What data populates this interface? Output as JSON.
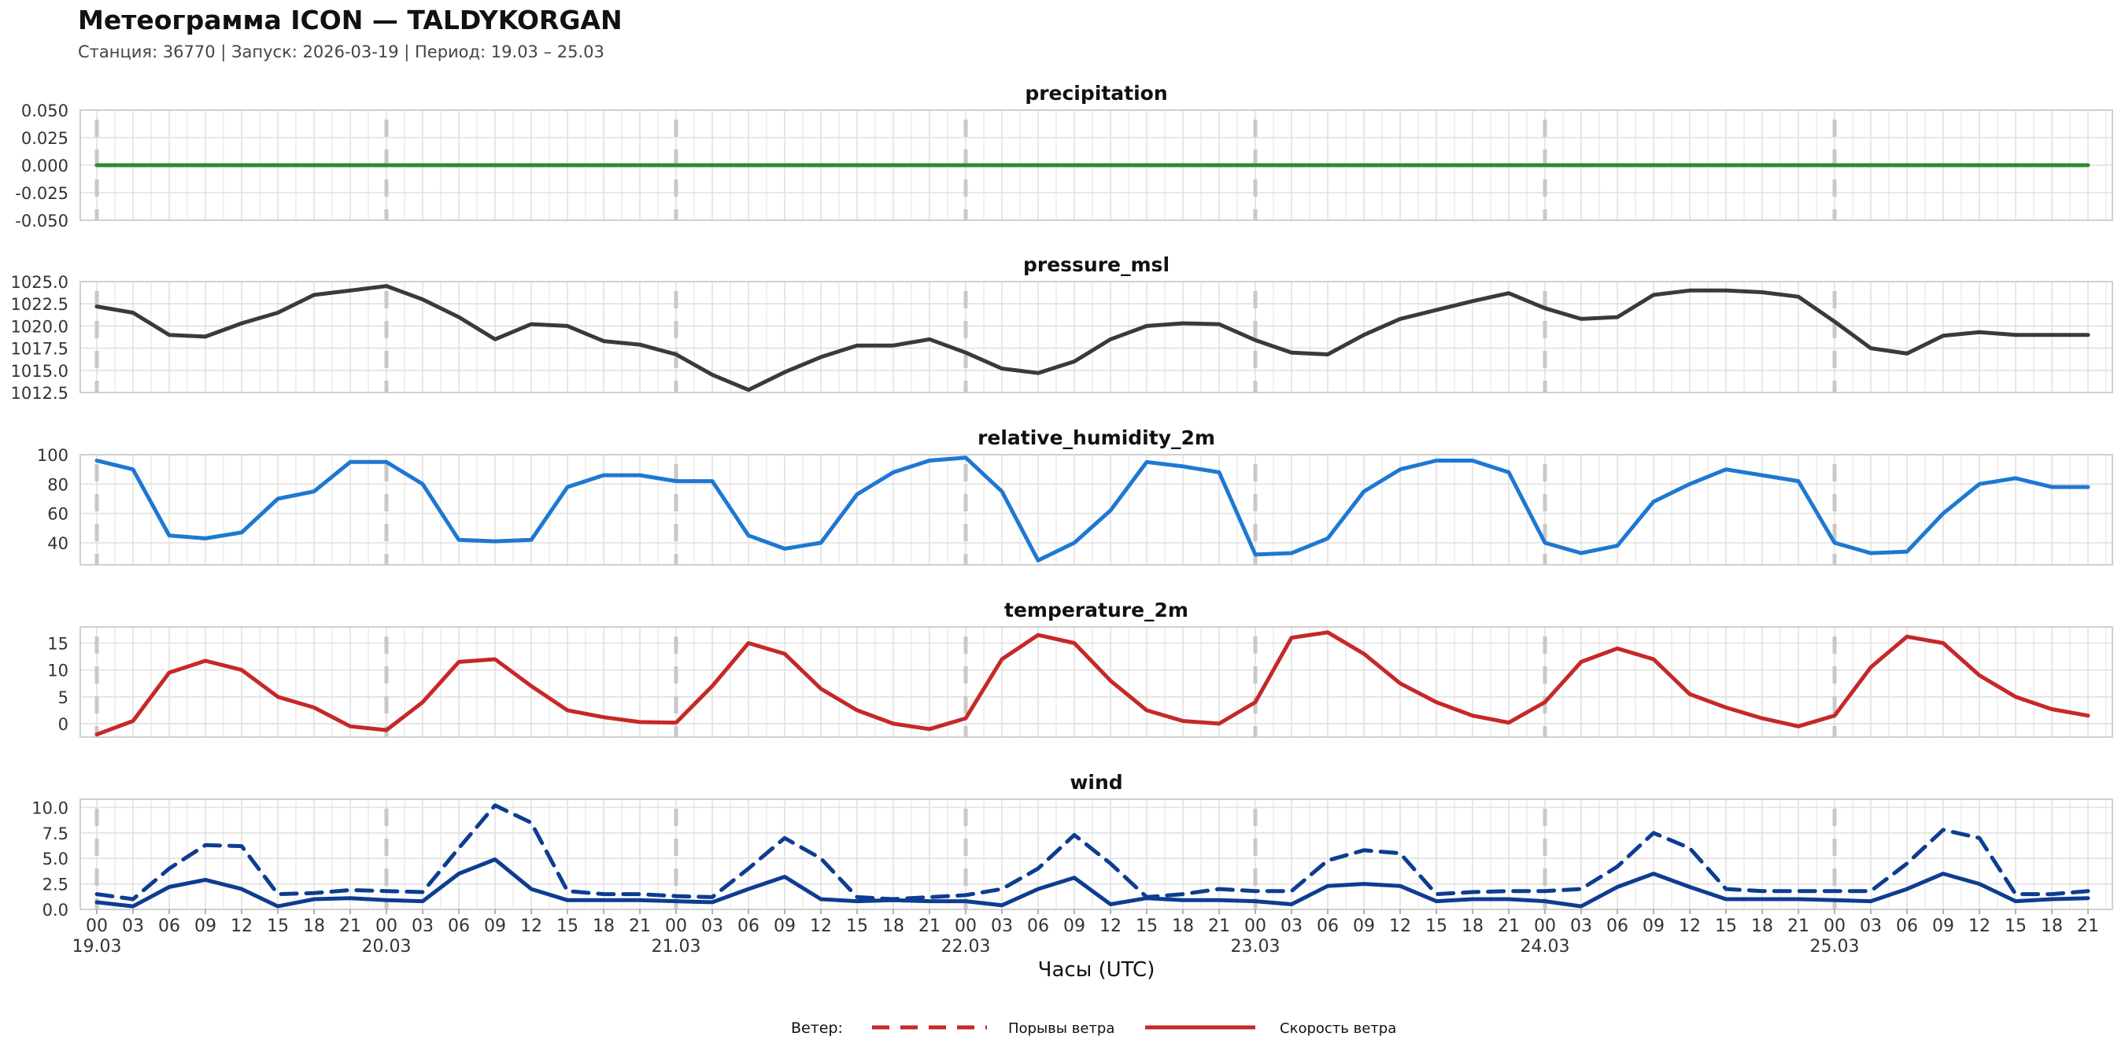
{
  "header": {
    "title": "Метеограмма ICON — TALDYKORGAN",
    "subtitle": "Станция: 36770  | Запуск: 2026-03-19  | Период: 19.03 – 25.03"
  },
  "colors": {
    "precipitation": "#2e8b2e",
    "pressure": "#3a3a3a",
    "humidity": "#1e78d2",
    "temperature": "#c62828",
    "wind": "#0d3d91",
    "legend": "#c62828",
    "grid": "#e1e1e1",
    "day_marker": "#c8c8c8"
  },
  "chart_data": {
    "type": "line",
    "time_step_hours": 3,
    "x_ticks": [
      "00",
      "03",
      "06",
      "09",
      "12",
      "15",
      "18",
      "21",
      "00",
      "03",
      "06",
      "09",
      "12",
      "15",
      "18",
      "21",
      "00",
      "03",
      "06",
      "09",
      "12",
      "15",
      "18",
      "21",
      "00",
      "03",
      "06",
      "09",
      "12",
      "15",
      "18",
      "21",
      "00",
      "03",
      "06",
      "09",
      "12",
      "15",
      "18",
      "21",
      "00",
      "03",
      "06",
      "09",
      "12",
      "15",
      "18",
      "21",
      "00",
      "03",
      "06",
      "09",
      "12",
      "15",
      "18",
      "21"
    ],
    "date_labels": [
      "19.03",
      "20.03",
      "21.03",
      "22.03",
      "23.03",
      "24.03",
      "25.03"
    ],
    "xlabel": "Часы (UTC)",
    "panels": [
      {
        "title": "precipitation",
        "ylim": [
          -0.05,
          0.05
        ],
        "yticks": [
          "0.050",
          "0.025",
          "0.000",
          "-0.025",
          "-0.050"
        ],
        "ytick_values": [
          0.05,
          0.025,
          0,
          -0.025,
          -0.05
        ],
        "series": [
          {
            "values": [
              0,
              0,
              0,
              0,
              0,
              0,
              0,
              0,
              0,
              0,
              0,
              0,
              0,
              0,
              0,
              0,
              0,
              0,
              0,
              0,
              0,
              0,
              0,
              0,
              0,
              0,
              0,
              0,
              0,
              0,
              0,
              0,
              0,
              0,
              0,
              0,
              0,
              0,
              0,
              0,
              0,
              0,
              0,
              0,
              0,
              0,
              0,
              0,
              0,
              0,
              0,
              0,
              0,
              0,
              0,
              0
            ],
            "color_key": "precipitation",
            "dashed": false
          }
        ]
      },
      {
        "title": "pressure_msl",
        "ylim": [
          1012.5,
          1025.0
        ],
        "yticks": [
          "1025.0",
          "1022.5",
          "1020.0",
          "1017.5",
          "1015.0",
          "1012.5"
        ],
        "ytick_values": [
          1025,
          1022.5,
          1020,
          1017.5,
          1015,
          1012.5
        ],
        "series": [
          {
            "values": [
              1022.2,
              1021.5,
              1019.0,
              1018.8,
              1020.3,
              1021.5,
              1023.5,
              1024.0,
              1024.5,
              1023.0,
              1021.0,
              1018.5,
              1020.2,
              1020.0,
              1018.3,
              1017.9,
              1016.8,
              1014.5,
              1012.8,
              1014.8,
              1016.5,
              1017.8,
              1017.8,
              1018.5,
              1017.0,
              1015.2,
              1014.7,
              1016.0,
              1018.5,
              1020.0,
              1020.3,
              1020.2,
              1018.4,
              1017.0,
              1016.8,
              1019.0,
              1020.8,
              1021.8,
              1022.8,
              1023.7,
              1022.0,
              1020.8,
              1021.0,
              1023.5,
              1024.0,
              1024.0,
              1023.8,
              1023.3,
              1020.5,
              1017.5,
              1016.9,
              1018.9,
              1019.3,
              1019.0,
              1019.0,
              1019.0
            ],
            "color_key": "pressure",
            "dashed": false
          }
        ]
      },
      {
        "title": "relative_humidity_2m",
        "ylim": [
          25,
          100
        ],
        "yticks": [
          "100",
          "80",
          "60",
          "40"
        ],
        "ytick_values": [
          100,
          80,
          60,
          40
        ],
        "series": [
          {
            "values": [
              96,
              90,
              45,
              43,
              47,
              70,
              75,
              95,
              95,
              80,
              42,
              41,
              42,
              78,
              86,
              86,
              82,
              82,
              45,
              36,
              40,
              73,
              88,
              96,
              98,
              75,
              28,
              40,
              62,
              95,
              92,
              88,
              32,
              33,
              43,
              75,
              90,
              96,
              96,
              88,
              40,
              33,
              38,
              68,
              80,
              90,
              86,
              82,
              40,
              33,
              34,
              60,
              80,
              84,
              78,
              78
            ],
            "color_key": "humidity",
            "dashed": false
          }
        ]
      },
      {
        "title": "temperature_2m",
        "ylim": [
          -2.5,
          18
        ],
        "yticks": [
          "15",
          "10",
          "5",
          "0"
        ],
        "ytick_values": [
          15,
          10,
          5,
          0
        ],
        "series": [
          {
            "values": [
              -2.0,
              0.5,
              9.5,
              11.7,
              10.0,
              5.0,
              3.0,
              -0.5,
              -1.2,
              4.0,
              11.5,
              12.0,
              7.0,
              2.5,
              1.2,
              0.3,
              0.2,
              7.0,
              15.0,
              13.0,
              6.5,
              2.5,
              0.0,
              -1.0,
              1.0,
              12.0,
              16.5,
              15.0,
              8.0,
              2.5,
              0.5,
              0.0,
              4.0,
              16.0,
              17.0,
              13.0,
              7.5,
              4.0,
              1.5,
              0.2,
              4.0,
              11.5,
              14.0,
              12.0,
              5.5,
              3.0,
              1.0,
              -0.5,
              1.5,
              10.5,
              16.2,
              15.0,
              9.0,
              5.0,
              2.7,
              1.5
            ],
            "color_key": "temperature",
            "dashed": false
          }
        ]
      },
      {
        "title": "wind",
        "ylim": [
          0,
          10.8
        ],
        "yticks": [
          "10.0",
          "7.5",
          "5.0",
          "2.5",
          "0.0"
        ],
        "ytick_values": [
          10,
          7.5,
          5,
          2.5,
          0
        ],
        "series": [
          {
            "name": "Порывы ветра",
            "values": [
              1.5,
              1.0,
              4.0,
              6.3,
              6.2,
              1.5,
              1.6,
              1.9,
              1.8,
              1.7,
              6.0,
              10.2,
              8.5,
              1.8,
              1.5,
              1.5,
              1.3,
              1.2,
              4.0,
              7.0,
              5.0,
              1.2,
              1.0,
              1.2,
              1.4,
              2.0,
              4.0,
              7.3,
              4.5,
              1.2,
              1.5,
              2.0,
              1.8,
              1.8,
              4.8,
              5.8,
              5.5,
              1.5,
              1.7,
              1.8,
              1.8,
              2.0,
              4.2,
              7.5,
              6.0,
              2.0,
              1.8,
              1.8,
              1.8,
              1.8,
              4.5,
              7.8,
              7.0,
              1.5,
              1.5,
              1.8
            ],
            "color_key": "wind",
            "dashed": true
          },
          {
            "name": "Скорость ветра",
            "values": [
              0.7,
              0.3,
              2.2,
              2.9,
              2.0,
              0.3,
              1.0,
              1.1,
              0.9,
              0.8,
              3.5,
              4.9,
              2.0,
              0.9,
              0.9,
              0.9,
              0.8,
              0.7,
              2.0,
              3.2,
              1.0,
              0.8,
              0.9,
              0.8,
              0.8,
              0.4,
              2.0,
              3.1,
              0.5,
              1.1,
              0.9,
              0.9,
              0.8,
              0.5,
              2.3,
              2.5,
              2.3,
              0.8,
              1.0,
              1.0,
              0.8,
              0.3,
              2.2,
              3.5,
              2.2,
              1.0,
              1.0,
              1.0,
              0.9,
              0.8,
              2.0,
              3.5,
              2.5,
              0.8,
              1.0,
              1.1
            ],
            "color_key": "wind",
            "dashed": false
          }
        ]
      }
    ],
    "legend": {
      "title": "Ветер:",
      "placement": "bottom-center",
      "items": [
        "Порывы ветра",
        "Скорость ветра"
      ]
    }
  }
}
